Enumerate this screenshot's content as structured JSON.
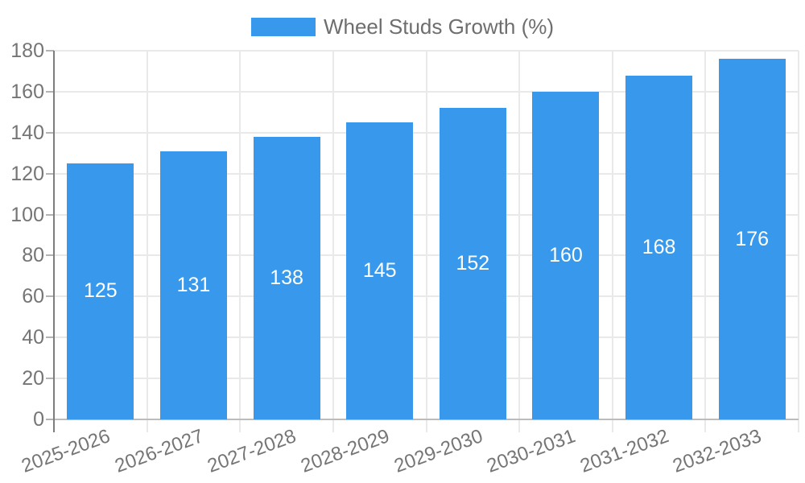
{
  "page": {
    "background": "#ffffff"
  },
  "legend": {
    "label": "Wheel Studs Growth (%)"
  },
  "chart_data": {
    "type": "bar",
    "title": "Wheel Studs Growth (%)",
    "legend_position": "top",
    "categories": [
      "2025-2026",
      "2026-2027",
      "2027-2028",
      "2028-2029",
      "2029-2030",
      "2030-2031",
      "2031-2032",
      "2032-2033"
    ],
    "series": [
      {
        "name": "Wheel Studs Growth (%)",
        "values": [
          125,
          131,
          138,
          145,
          152,
          160,
          168,
          176
        ],
        "color": "#3899ec"
      }
    ],
    "value_labels": {
      "position": "center",
      "color": "#ffffff"
    },
    "xlabel": "",
    "ylabel": "",
    "ylim": [
      0,
      180
    ],
    "yticks": [
      0,
      20,
      40,
      60,
      80,
      100,
      120,
      140,
      160,
      180
    ],
    "x_tick_rotation_deg": -20,
    "grid": true,
    "colors": {
      "bar": "#3899ec",
      "gridline": "#e9e9e9",
      "baseline": "#bcbcbc",
      "axis_line": "#7d7d7d",
      "tick_mark": "#b3b3b3",
      "tick_text": "#757575",
      "legend_text": "#6e6e6e",
      "value_label": "#ffffff"
    }
  }
}
